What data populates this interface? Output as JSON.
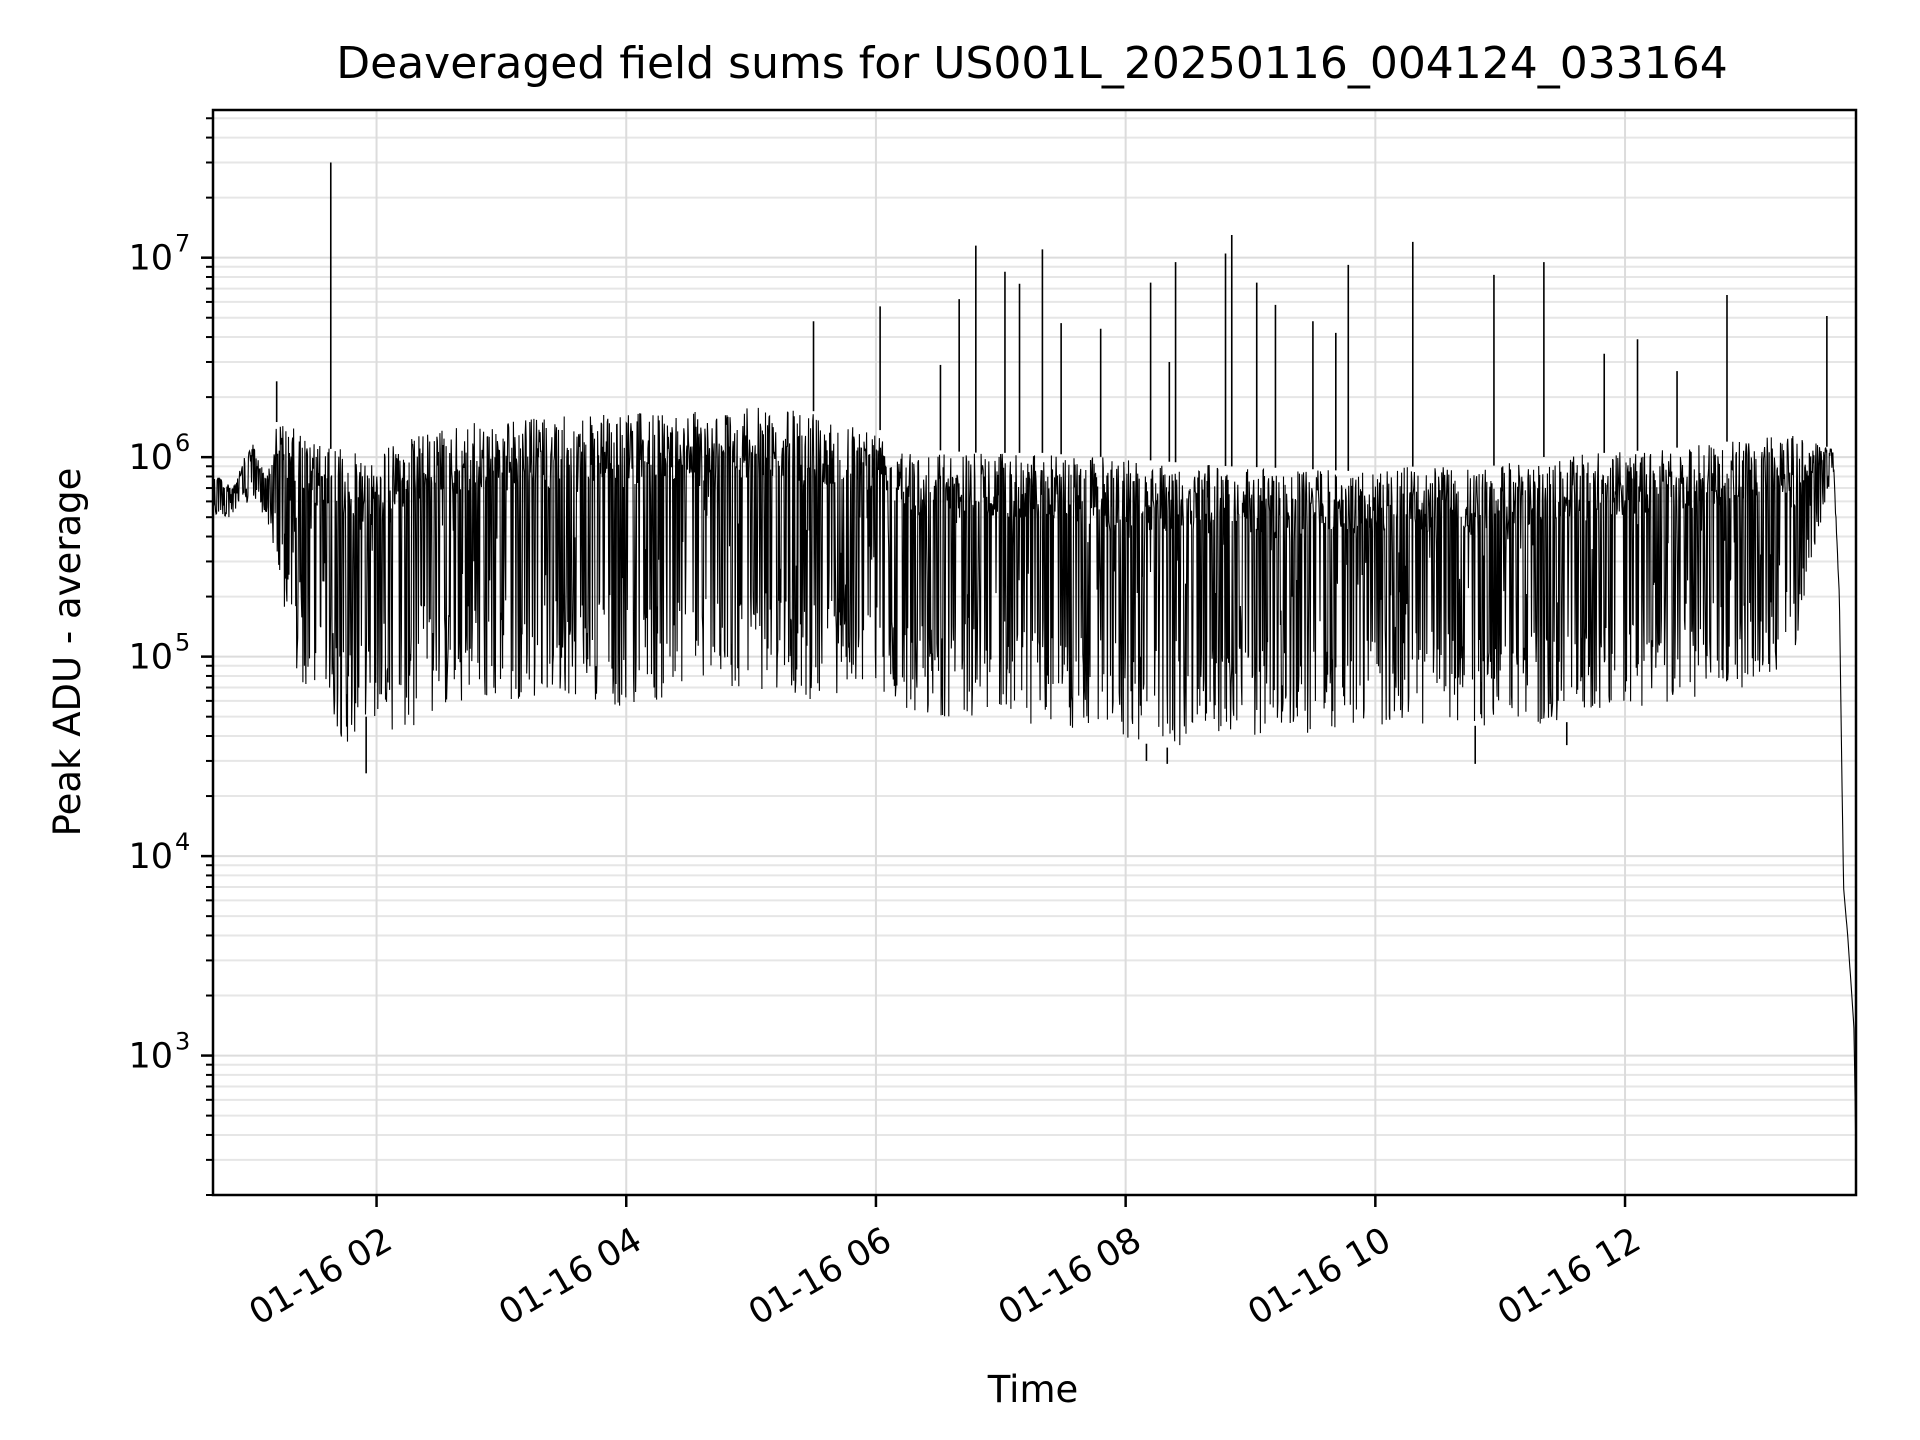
{
  "chart_data": {
    "type": "line",
    "title": "Deaveraged field sums for US001L_20250116_004124_033164",
    "xlabel": "Time",
    "ylabel": "Peak ADU - average",
    "yscale": "log",
    "ylim": [
      200,
      55000000
    ],
    "xlim": [
      "2025-01-16T00:41:24",
      "2025-01-16T13:51:00"
    ],
    "grid": true,
    "line_color": "#000000",
    "grid_color": "#dcdcdc",
    "x_ticks": [
      {
        "value": "2025-01-16T02:00:00",
        "label": "01-16 02"
      },
      {
        "value": "2025-01-16T04:00:00",
        "label": "01-16 04"
      },
      {
        "value": "2025-01-16T06:00:00",
        "label": "01-16 06"
      },
      {
        "value": "2025-01-16T08:00:00",
        "label": "01-16 08"
      },
      {
        "value": "2025-01-16T10:00:00",
        "label": "01-16 10"
      },
      {
        "value": "2025-01-16T12:00:00",
        "label": "01-16 12"
      }
    ],
    "y_ticks": [
      {
        "value": 1000,
        "base": "10",
        "exp": "3"
      },
      {
        "value": 10000,
        "base": "10",
        "exp": "4"
      },
      {
        "value": 100000,
        "base": "10",
        "exp": "5"
      },
      {
        "value": 1000000,
        "base": "10",
        "exp": "6"
      },
      {
        "value": 10000000,
        "base": "10",
        "exp": "7"
      }
    ],
    "series": [
      {
        "x": [
          "2025-01-16T00:41:24",
          "2025-01-16T00:50:00",
          "2025-01-16T01:00:00",
          "2025-01-16T01:07:00",
          "2025-01-16T01:12:00",
          "2025-01-16T01:20:00",
          "2025-01-16T01:30:00",
          "2025-01-16T01:38:00",
          "2025-01-16T01:45:00",
          "2025-01-16T01:55:00",
          "2025-01-16T02:10:00",
          "2025-01-16T02:30:00",
          "2025-01-16T03:00:00",
          "2025-01-16T03:30:00",
          "2025-01-16T04:00:00",
          "2025-01-16T04:30:00",
          "2025-01-16T05:00:00",
          "2025-01-16T05:30:00",
          "2025-01-16T05:50:00",
          "2025-01-16T06:00:00",
          "2025-01-16T06:20:00",
          "2025-01-16T06:50:00",
          "2025-01-16T07:20:00",
          "2025-01-16T07:50:00",
          "2025-01-16T08:20:00",
          "2025-01-16T08:50:00",
          "2025-01-16T09:20:00",
          "2025-01-16T09:50:00",
          "2025-01-16T10:20:00",
          "2025-01-16T10:50:00",
          "2025-01-16T11:20:00",
          "2025-01-16T11:50:00",
          "2025-01-16T12:20:00",
          "2025-01-16T12:50:00",
          "2025-01-16T13:20:00",
          "2025-01-16T13:40:00",
          "2025-01-16T13:43:00",
          "2025-01-16T13:45:00",
          "2025-01-16T13:47:00",
          "2025-01-16T13:50:00",
          "2025-01-16T13:51:00"
        ],
        "upper": [
          900000,
          700000,
          1200000,
          800000,
          1500000,
          1400000,
          1200000,
          1100000,
          1100000,
          1000000,
          1200000,
          1400000,
          1550000,
          1600000,
          1650000,
          1700000,
          1780000,
          1700000,
          1500000,
          1400000,
          1100000,
          1050000,
          1050000,
          1000000,
          950000,
          900000,
          880000,
          850000,
          900000,
          880000,
          1000000,
          1050000,
          1100000,
          1200000,
          1300000,
          1100000,
          200000,
          7000,
          4000,
          1400,
          300
        ],
        "lower": [
          500000,
          500000,
          600000,
          500000,
          300000,
          80000,
          60000,
          50000,
          35000,
          50000,
          40000,
          55000,
          60000,
          65000,
          55000,
          65000,
          70000,
          60000,
          70000,
          70000,
          50000,
          50000,
          45000,
          40000,
          35000,
          40000,
          40000,
          45000,
          45000,
          45000,
          45000,
          50000,
          55000,
          65000,
          90000,
          900000,
          200000,
          7000,
          4000,
          1400,
          300
        ]
      }
    ],
    "spikes": [
      {
        "x": "2025-01-16T01:38:00",
        "y": 30000000
      },
      {
        "x": "2025-01-16T01:12:00",
        "y": 2400000
      },
      {
        "x": "2025-01-16T05:30:00",
        "y": 4800000
      },
      {
        "x": "2025-01-16T06:02:00",
        "y": 5700000
      },
      {
        "x": "2025-01-16T06:31:00",
        "y": 2900000
      },
      {
        "x": "2025-01-16T06:40:00",
        "y": 6200000
      },
      {
        "x": "2025-01-16T06:48:00",
        "y": 11500000
      },
      {
        "x": "2025-01-16T07:02:00",
        "y": 8500000
      },
      {
        "x": "2025-01-16T07:09:00",
        "y": 7400000
      },
      {
        "x": "2025-01-16T07:20:00",
        "y": 11000000
      },
      {
        "x": "2025-01-16T07:29:00",
        "y": 4700000
      },
      {
        "x": "2025-01-16T07:48:00",
        "y": 4400000
      },
      {
        "x": "2025-01-16T08:12:00",
        "y": 7500000
      },
      {
        "x": "2025-01-16T08:21:00",
        "y": 3000000
      },
      {
        "x": "2025-01-16T08:24:00",
        "y": 9500000
      },
      {
        "x": "2025-01-16T08:48:00",
        "y": 10500000
      },
      {
        "x": "2025-01-16T08:51:00",
        "y": 13000000
      },
      {
        "x": "2025-01-16T09:03:00",
        "y": 7500000
      },
      {
        "x": "2025-01-16T09:12:00",
        "y": 5800000
      },
      {
        "x": "2025-01-16T09:30:00",
        "y": 4800000
      },
      {
        "x": "2025-01-16T09:41:00",
        "y": 4200000
      },
      {
        "x": "2025-01-16T09:47:00",
        "y": 9200000
      },
      {
        "x": "2025-01-16T10:18:00",
        "y": 12000000
      },
      {
        "x": "2025-01-16T10:57:00",
        "y": 8200000
      },
      {
        "x": "2025-01-16T11:21:00",
        "y": 9500000
      },
      {
        "x": "2025-01-16T11:50:00",
        "y": 3300000
      },
      {
        "x": "2025-01-16T12:06:00",
        "y": 3900000
      },
      {
        "x": "2025-01-16T12:25:00",
        "y": 2700000
      },
      {
        "x": "2025-01-16T12:49:00",
        "y": 6500000
      },
      {
        "x": "2025-01-16T13:37:00",
        "y": 5100000
      }
    ],
    "dips": [
      {
        "x": "2025-01-16T01:55:00",
        "y": 26000.0
      },
      {
        "x": "2025-01-16T08:10:00",
        "y": 30000
      },
      {
        "x": "2025-01-16T08:20:00",
        "y": 29000
      },
      {
        "x": "2025-01-16T10:48:00",
        "y": 29000
      },
      {
        "x": "2025-01-16T11:32:00",
        "y": 36000
      }
    ]
  }
}
